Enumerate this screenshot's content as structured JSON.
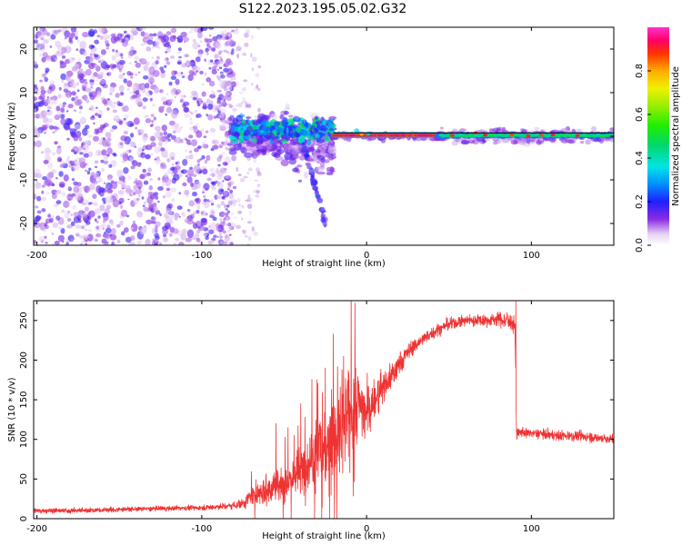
{
  "title": "S122.2023.195.05.02.G32",
  "chart_data": [
    {
      "type": "heatmap",
      "xlabel": "Height of straight line (km)",
      "ylabel": "Frequency (Hz)",
      "xlim": [
        -202,
        150
      ],
      "ylim": [
        -25,
        25
      ],
      "xticks": [
        -200,
        -100,
        0,
        100
      ],
      "yticks": [
        20,
        10,
        0,
        -10,
        -20
      ],
      "xtick_labels": [
        "-200",
        "-100",
        "0",
        "100"
      ],
      "ytick_labels": [
        "20",
        "10",
        "0",
        "-10",
        "-20"
      ],
      "colorbar": {
        "label": "Normalized spectral amplitude",
        "range": [
          0,
          1
        ],
        "ticks": [
          0.0,
          0.2,
          0.4,
          0.6,
          0.8
        ],
        "tick_labels": [
          "0.0",
          "0.2",
          "0.4",
          "0.6",
          "0.8"
        ],
        "colormap": "gist_ncar-like (white-purple-blue-cyan-green-yellow-orange-red-pink)"
      },
      "grid": false,
      "regions": [
        {
          "x": [
            -202,
            -80
          ],
          "freq": [
            -25,
            25
          ],
          "amplitude": 0.2,
          "pattern": "scattered noise"
        },
        {
          "x": [
            -80,
            -20
          ],
          "freq": [
            -15,
            10
          ],
          "amplitude": 0.4,
          "pattern": "broadband speckle"
        },
        {
          "x": [
            -20,
            45
          ],
          "freq": [
            -1,
            1
          ],
          "amplitude": 0.95,
          "pattern": "narrow band at 0 Hz"
        },
        {
          "x": [
            45,
            150
          ],
          "freq": [
            -2,
            2
          ],
          "amplitude": 0.5,
          "pattern": "narrow band at 0 Hz"
        }
      ]
    },
    {
      "type": "line",
      "xlabel": "Height of straight line (km)",
      "ylabel": "SNR (10 * v/v)",
      "xlim": [
        -202,
        150
      ],
      "ylim": [
        0,
        275
      ],
      "xticks": [
        -200,
        -100,
        0,
        100
      ],
      "yticks": [
        0,
        50,
        100,
        150,
        200,
        250
      ],
      "xtick_labels": [
        "-200",
        "-100",
        "0",
        "100"
      ],
      "ytick_labels": [
        "0",
        "50",
        "100",
        "150",
        "200",
        "250"
      ],
      "color": "#ee3333",
      "grid": false,
      "series": [
        {
          "x": [
            -202,
            -180,
            -160,
            -140,
            -120,
            -100,
            -90,
            -80,
            -75,
            -70,
            -60,
            -50,
            -40,
            -35,
            -30,
            -25,
            -20,
            -15,
            -10,
            -5,
            0,
            5,
            10,
            15,
            20,
            25,
            30,
            40,
            50,
            60,
            70,
            80,
            85,
            90,
            91,
            92,
            100,
            110,
            120,
            130,
            140,
            150
          ],
          "y": [
            10,
            10,
            11,
            12,
            13,
            14,
            15,
            17,
            20,
            28,
            35,
            45,
            60,
            75,
            85,
            95,
            100,
            110,
            130,
            150,
            130,
            150,
            165,
            180,
            195,
            210,
            220,
            235,
            245,
            250,
            250,
            252,
            250,
            245,
            105,
            108,
            108,
            106,
            105,
            104,
            102,
            100
          ],
          "noise": [
            4,
            4,
            4,
            4,
            4,
            4,
            5,
            6,
            10,
            15,
            25,
            30,
            40,
            50,
            60,
            70,
            80,
            90,
            80,
            60,
            50,
            35,
            30,
            25,
            20,
            15,
            12,
            10,
            10,
            10,
            10,
            12,
            15,
            18,
            10,
            8,
            8,
            8,
            8,
            8,
            8,
            8
          ],
          "spikes": [
            {
              "x": -55,
              "y": 120
            },
            {
              "x": -40,
              "y": 145
            },
            {
              "x": -30,
              "y": 175
            },
            {
              "x": -25,
              "y": 190
            },
            {
              "x": -14,
              "y": 205
            },
            {
              "x": -7,
              "y": 272
            },
            {
              "x": 90.5,
              "y": 275
            }
          ]
        }
      ]
    }
  ]
}
